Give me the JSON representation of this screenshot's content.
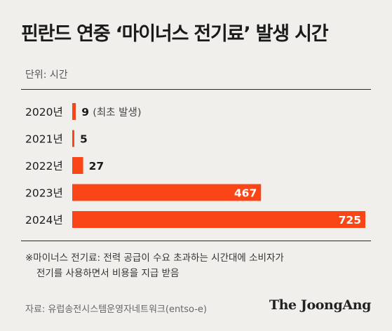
{
  "title": "핀란드 연중 ‘마이너스 전기료’ 발생 시간",
  "unit": "단위: 시간",
  "chart_data": {
    "type": "bar",
    "orientation": "horizontal",
    "categories": [
      "2020년",
      "2021년",
      "2022년",
      "2023년",
      "2024년"
    ],
    "values": [
      9,
      5,
      27,
      467,
      725
    ],
    "value_labels": [
      "9",
      "5",
      "27",
      "467",
      "725"
    ],
    "annotations": [
      "(최초 발생)",
      "",
      "",
      "",
      ""
    ],
    "bar_color": "#fa4616",
    "xlim": [
      0,
      725
    ],
    "grid": false,
    "legend": "none"
  },
  "note_line1": "※마이너스 전기료: 전력 공급이 수요 초과하는 시간대에 소비자가",
  "note_line2": "전기를 사용하면서 비용을 지급 받음",
  "source": "자료: 유럽송전시스템운영자네트워크(entso-e)",
  "brand": "The JoongAng"
}
